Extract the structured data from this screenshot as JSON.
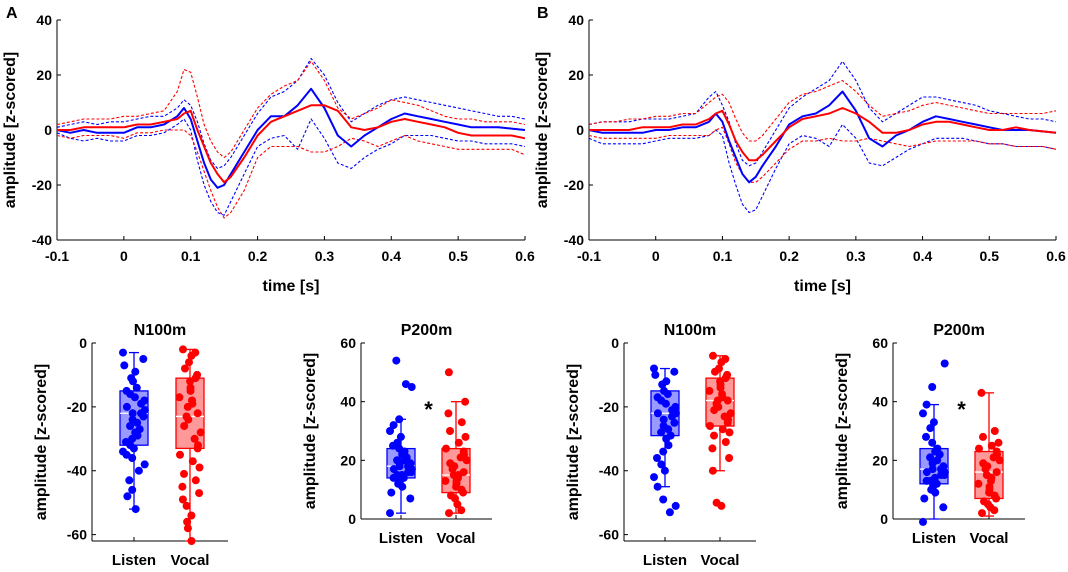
{
  "panel_labels": [
    "A",
    "B"
  ],
  "colors": {
    "listen": "#0000ff",
    "vocal": "#ff0000",
    "axis": "#000000"
  },
  "chart_data": [
    {
      "id": "A-wave",
      "type": "line",
      "title": "",
      "xlabel": "time [s]",
      "ylabel": "amplitude [z-scored]",
      "xlim": [
        -0.1,
        0.6
      ],
      "ylim": [
        -40,
        40
      ],
      "xticks": [
        -0.1,
        0,
        0.1,
        0.2,
        0.3,
        0.4,
        0.5,
        0.6
      ],
      "xtick_labels": [
        "-0.1",
        "0",
        "0.1",
        "0.2",
        "0.3",
        "0.4",
        "0.5",
        "0.6"
      ],
      "yticks": [
        -40,
        -20,
        0,
        20,
        40
      ],
      "ytick_labels": [
        "-40",
        "-20",
        "0",
        "20",
        "40"
      ],
      "x": [
        -0.1,
        -0.08,
        -0.06,
        -0.04,
        -0.02,
        0,
        0.02,
        0.04,
        0.06,
        0.08,
        0.09,
        0.1,
        0.11,
        0.12,
        0.13,
        0.14,
        0.15,
        0.16,
        0.18,
        0.2,
        0.22,
        0.24,
        0.26,
        0.28,
        0.3,
        0.32,
        0.34,
        0.36,
        0.38,
        0.4,
        0.42,
        0.44,
        0.46,
        0.48,
        0.5,
        0.52,
        0.54,
        0.56,
        0.58,
        0.6
      ],
      "series": [
        {
          "name": "Listen",
          "style": "solid",
          "color": "#0000ff",
          "values": [
            0,
            -1,
            0,
            -1,
            -1,
            -1,
            1,
            1,
            2,
            5,
            8,
            4,
            -4,
            -12,
            -18,
            -21,
            -20,
            -16,
            -8,
            0,
            5,
            5,
            9,
            15,
            8,
            -2,
            -6,
            -2,
            1,
            4,
            6,
            5,
            4,
            3,
            2,
            1,
            1,
            1,
            0.5,
            0
          ]
        },
        {
          "name": "Listen upper",
          "style": "dashed",
          "color": "#0000ff",
          "values": [
            1,
            2,
            3,
            2,
            3,
            3,
            4,
            5,
            5,
            8,
            11,
            9,
            3,
            -5,
            -11,
            -14,
            -13,
            -10,
            -2,
            6,
            12,
            14,
            18,
            26,
            20,
            10,
            3,
            6,
            9,
            11,
            12,
            11,
            10,
            9,
            8,
            7,
            6,
            5,
            5,
            4
          ]
        },
        {
          "name": "Listen lower",
          "style": "dashed",
          "color": "#0000ff",
          "values": [
            -1,
            -3,
            -4,
            -3,
            -4,
            -4,
            -2,
            -2,
            -1,
            2,
            4,
            0,
            -11,
            -20,
            -26,
            -30,
            -31,
            -26,
            -16,
            -6,
            -3,
            -2,
            -7,
            4,
            -3,
            -12,
            -14,
            -10,
            -7,
            -5,
            -2,
            -2,
            -2,
            -3,
            -4,
            -4,
            -5,
            -5,
            -5,
            -6
          ]
        },
        {
          "name": "Vocal",
          "style": "solid",
          "color": "#ff0000",
          "values": [
            0,
            0,
            1,
            1,
            1,
            1,
            2,
            2,
            3,
            4,
            6,
            7,
            0,
            -6,
            -12,
            -16,
            -19,
            -17,
            -10,
            -2,
            3,
            5,
            7,
            9,
            9,
            7,
            1,
            0,
            1,
            3,
            4,
            3,
            2,
            1,
            -1,
            -2,
            -2,
            -2,
            -2,
            -3
          ]
        },
        {
          "name": "Vocal upper",
          "style": "dashed",
          "color": "#ff0000",
          "values": [
            2,
            3,
            4,
            4,
            4,
            5,
            5,
            6,
            7,
            14,
            22,
            21,
            12,
            2,
            -4,
            -8,
            -10,
            -8,
            0,
            8,
            13,
            16,
            18,
            25,
            18,
            8,
            4,
            6,
            8,
            11,
            10,
            9,
            7,
            5,
            4,
            4,
            3,
            3,
            3,
            2
          ]
        },
        {
          "name": "Vocal lower",
          "style": "dashed",
          "color": "#ff0000",
          "values": [
            -2,
            -3,
            -2,
            -2,
            -2,
            -3,
            -1,
            -1,
            0,
            0,
            0,
            -2,
            -8,
            -15,
            -22,
            -28,
            -32,
            -30,
            -22,
            -10,
            -6,
            -6,
            -6,
            -8,
            -8,
            -6,
            -3,
            -4,
            -6,
            -4,
            -2,
            -4,
            -5,
            -6,
            -7,
            -7,
            -7,
            -7,
            -7,
            -9
          ]
        }
      ]
    },
    {
      "id": "B-wave",
      "type": "line",
      "title": "",
      "xlabel": "time [s]",
      "ylabel": "amplitude [z-scored]",
      "xlim": [
        -0.1,
        0.6
      ],
      "ylim": [
        -40,
        40
      ],
      "xticks": [
        -0.1,
        0,
        0.1,
        0.2,
        0.3,
        0.4,
        0.5,
        0.6
      ],
      "xtick_labels": [
        "-0.1",
        "0",
        "0.1",
        "0.2",
        "0.3",
        "0.4",
        "0.5",
        "0.6"
      ],
      "yticks": [
        -40,
        -20,
        0,
        20,
        40
      ],
      "ytick_labels": [
        "-40",
        "-20",
        "0",
        "20",
        "40"
      ],
      "x": [
        -0.1,
        -0.08,
        -0.06,
        -0.04,
        -0.02,
        0,
        0.02,
        0.04,
        0.06,
        0.08,
        0.09,
        0.1,
        0.11,
        0.12,
        0.13,
        0.14,
        0.15,
        0.16,
        0.18,
        0.2,
        0.22,
        0.24,
        0.26,
        0.28,
        0.3,
        0.32,
        0.34,
        0.36,
        0.38,
        0.4,
        0.42,
        0.44,
        0.46,
        0.48,
        0.5,
        0.52,
        0.54,
        0.56,
        0.58,
        0.6
      ],
      "series": [
        {
          "name": "Listen",
          "style": "solid",
          "color": "#0000ff",
          "values": [
            0,
            -1,
            -1,
            -1,
            -1,
            0,
            0,
            1,
            1,
            3,
            6,
            3,
            -4,
            -10,
            -16,
            -19,
            -17,
            -13,
            -6,
            2,
            5,
            6,
            9,
            14,
            7,
            -3,
            -6,
            -2,
            0,
            3,
            5,
            4,
            3,
            2,
            1,
            0,
            0,
            0,
            -0.5,
            -1
          ]
        },
        {
          "name": "Listen upper",
          "style": "dashed",
          "color": "#0000ff",
          "values": [
            2,
            3,
            3,
            3,
            4,
            4,
            4,
            5,
            6,
            12,
            14,
            9,
            3,
            -5,
            -11,
            -13,
            -12,
            -8,
            0,
            8,
            12,
            15,
            18,
            25,
            18,
            8,
            3,
            6,
            9,
            12,
            12,
            11,
            10,
            9,
            7,
            6,
            5,
            4,
            4,
            3
          ]
        },
        {
          "name": "Listen lower",
          "style": "dashed",
          "color": "#0000ff",
          "values": [
            -3,
            -5,
            -5,
            -5,
            -5,
            -4,
            -3,
            -3,
            -3,
            -2,
            0,
            -2,
            -12,
            -20,
            -27,
            -30,
            -29,
            -24,
            -14,
            -5,
            -2,
            -3,
            -6,
            2,
            -3,
            -12,
            -13,
            -10,
            -7,
            -5,
            -3,
            -3,
            -3,
            -4,
            -5,
            -5,
            -6,
            -6,
            -6,
            -7
          ]
        },
        {
          "name": "Vocal",
          "style": "solid",
          "color": "#ff0000",
          "values": [
            0,
            0,
            0,
            0,
            1,
            1,
            1,
            2,
            2,
            4,
            6,
            7,
            2,
            -4,
            -8,
            -11,
            -11,
            -9,
            -4,
            1,
            4,
            5,
            6,
            8,
            6,
            3,
            -1,
            -1,
            0,
            2,
            3,
            3,
            2,
            1,
            0,
            0,
            1,
            0,
            -0.5,
            -1
          ]
        },
        {
          "name": "Vocal upper",
          "style": "dashed",
          "color": "#ff0000",
          "values": [
            2,
            3,
            3,
            4,
            4,
            5,
            5,
            6,
            6,
            10,
            12,
            13,
            10,
            4,
            -1,
            -4,
            -4,
            -2,
            4,
            10,
            13,
            14,
            16,
            18,
            14,
            9,
            5,
            6,
            7,
            9,
            10,
            9,
            8,
            7,
            6,
            6,
            6,
            6,
            6,
            7
          ]
        },
        {
          "name": "Vocal lower",
          "style": "dashed",
          "color": "#ff0000",
          "values": [
            -2,
            -3,
            -3,
            -3,
            -3,
            -3,
            -2,
            -2,
            -2,
            -2,
            0,
            1,
            -5,
            -12,
            -16,
            -19,
            -19,
            -17,
            -12,
            -7,
            -4,
            -4,
            -3,
            -4,
            -4,
            -3,
            -4,
            -5,
            -6,
            -5,
            -4,
            -4,
            -4,
            -4,
            -5,
            -5,
            -6,
            -6,
            -6,
            -7
          ]
        }
      ]
    },
    {
      "id": "A-N100m",
      "type": "box",
      "title": "N100m",
      "ylabel": "amplitude [z-scored]",
      "ylim": [
        -62,
        0
      ],
      "yticks": [
        -60,
        -40,
        -20,
        0
      ],
      "ytick_labels": [
        "-60",
        "-40",
        "-20",
        "0"
      ],
      "categories": [
        "Listen",
        "Vocal"
      ],
      "significance": "",
      "boxes": [
        {
          "name": "Listen",
          "color": "#0000ff",
          "whisker_low": -52,
          "q1": -32,
          "median": -22,
          "q3": -15,
          "whisker_high": -3,
          "points": [
            -3,
            -5,
            -7,
            -9,
            -11,
            -12,
            -14,
            -15,
            -16,
            -17,
            -18,
            -19,
            -20,
            -21,
            -22,
            -22,
            -23,
            -24,
            -25,
            -26,
            -27,
            -28,
            -29,
            -30,
            -31,
            -32,
            -33,
            -34,
            -35,
            -36,
            -38,
            -40,
            -43,
            -46,
            -48,
            -52
          ]
        },
        {
          "name": "Vocal",
          "color": "#ff0000",
          "whisker_low": -62,
          "q1": -33,
          "median": -23,
          "q3": -11,
          "whisker_high": -2,
          "points": [
            -2,
            -3,
            -4,
            -6,
            -8,
            -10,
            -11,
            -12,
            -14,
            -15,
            -17,
            -18,
            -19,
            -20,
            -22,
            -23,
            -24,
            -26,
            -28,
            -30,
            -32,
            -33,
            -35,
            -37,
            -39,
            -41,
            -43,
            -45,
            -47,
            -49,
            -51,
            -54,
            -56,
            -58,
            -62
          ]
        }
      ]
    },
    {
      "id": "A-P200m",
      "type": "box",
      "title": "P200m",
      "ylabel": "amplitude [z-scored]",
      "ylim": [
        0,
        60
      ],
      "yticks": [
        0,
        20,
        40,
        60
      ],
      "ytick_labels": [
        "0",
        "20",
        "40",
        "60"
      ],
      "categories": [
        "Listen",
        "Vocal"
      ],
      "significance": "*",
      "boxes": [
        {
          "name": "Listen",
          "color": "#0000ff",
          "whisker_low": 2,
          "q1": 14,
          "median": 18,
          "q3": 24,
          "whisker_high": 34,
          "points": [
            2,
            7,
            9,
            11,
            12,
            13,
            14,
            14,
            15,
            15,
            16,
            16,
            17,
            17,
            18,
            18,
            19,
            19,
            20,
            20,
            21,
            22,
            23,
            24,
            25,
            26,
            28,
            30,
            32,
            34,
            45,
            46,
            54
          ]
        },
        {
          "name": "Vocal",
          "color": "#ff0000",
          "whisker_low": 2,
          "q1": 9,
          "median": 15,
          "q3": 24,
          "whisker_high": 40,
          "points": [
            2,
            3,
            5,
            7,
            8,
            9,
            10,
            11,
            12,
            13,
            13,
            14,
            15,
            15,
            16,
            17,
            18,
            19,
            20,
            21,
            22,
            23,
            24,
            26,
            28,
            30,
            33,
            36,
            40,
            50
          ]
        }
      ]
    },
    {
      "id": "B-N100m",
      "type": "box",
      "title": "N100m",
      "ylabel": "amplitude [z-scored]",
      "ylim": [
        -62,
        0
      ],
      "yticks": [
        -60,
        -40,
        -20,
        0
      ],
      "ytick_labels": [
        "-60",
        "-40",
        "-20",
        "0"
      ],
      "categories": [
        "Listen",
        "Vocal"
      ],
      "significance": "",
      "boxes": [
        {
          "name": "Listen",
          "color": "#0000ff",
          "whisker_low": -45,
          "q1": -29,
          "median": -22,
          "q3": -15,
          "whisker_high": -8,
          "points": [
            -8,
            -9,
            -10,
            -12,
            -13,
            -15,
            -16,
            -17,
            -18,
            -19,
            -20,
            -21,
            -22,
            -22,
            -23,
            -24,
            -25,
            -26,
            -27,
            -28,
            -29,
            -30,
            -32,
            -34,
            -36,
            -38,
            -40,
            -42,
            -45,
            -49,
            -51,
            -53
          ]
        },
        {
          "name": "Vocal",
          "color": "#ff0000",
          "whisker_low": -40,
          "q1": -26,
          "median": -18,
          "q3": -11,
          "whisker_high": -4,
          "points": [
            -4,
            -5,
            -6,
            -8,
            -9,
            -10,
            -11,
            -12,
            -13,
            -14,
            -15,
            -16,
            -17,
            -18,
            -18,
            -19,
            -20,
            -21,
            -22,
            -23,
            -24,
            -25,
            -26,
            -27,
            -28,
            -29,
            -31,
            -33,
            -36,
            -40,
            -50,
            -51
          ]
        }
      ]
    },
    {
      "id": "B-P200m",
      "type": "box",
      "title": "P200m",
      "ylabel": "amplitude [z-scored]",
      "ylim": [
        0,
        60
      ],
      "yticks": [
        0,
        20,
        40,
        60
      ],
      "ytick_labels": [
        "0",
        "20",
        "40",
        "60"
      ],
      "categories": [
        "Listen",
        "Vocal"
      ],
      "significance": "*",
      "boxes": [
        {
          "name": "Listen",
          "color": "#0000ff",
          "whisker_low": 0,
          "q1": 12,
          "median": 17,
          "q3": 24,
          "whisker_high": 39,
          "points": [
            -1,
            4,
            7,
            9,
            10,
            11,
            12,
            13,
            13,
            14,
            15,
            15,
            16,
            16,
            17,
            17,
            18,
            19,
            20,
            21,
            22,
            23,
            24,
            26,
            28,
            31,
            33,
            36,
            39,
            45,
            53
          ]
        },
        {
          "name": "Vocal",
          "color": "#ff0000",
          "whisker_low": 1,
          "q1": 7,
          "median": 16,
          "q3": 23,
          "whisker_high": 43,
          "points": [
            2,
            3,
            4,
            5,
            6,
            7,
            8,
            9,
            10,
            11,
            12,
            13,
            14,
            15,
            16,
            17,
            18,
            19,
            20,
            21,
            22,
            23,
            24,
            25,
            26,
            28,
            30,
            43
          ]
        }
      ]
    }
  ]
}
